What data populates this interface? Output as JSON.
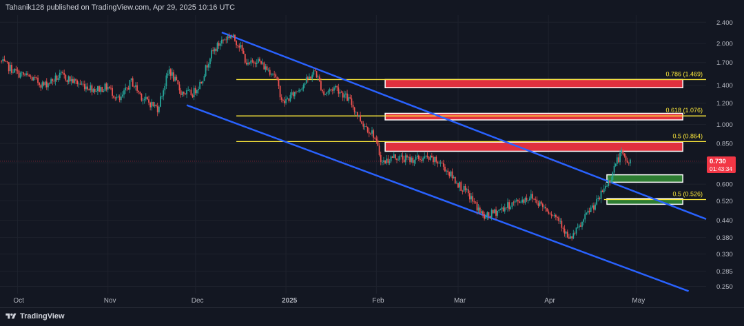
{
  "header": {
    "publisher_line": "Tahanik128 published on TradingView.com, Apr 29, 2025 10:16 UTC"
  },
  "footer": {
    "brand": "TradingView"
  },
  "colors": {
    "background": "#131722",
    "grid": "#1e222d",
    "up": "#26a69a",
    "down": "#ef5350",
    "channel": "#2962ff",
    "fib_line": "#ffeb3b",
    "resistance_zone": "#e0303e",
    "support_zone": "#2e7d32",
    "price_label": "#f23645"
  },
  "chart_data": {
    "type": "candlestick",
    "y_scale": "log",
    "ylim": [
      0.235,
      2.55
    ],
    "y_ticks": [
      "2.400",
      "2.000",
      "1.700",
      "1.400",
      "1.200",
      "1.000",
      "0.850",
      "0.720",
      "0.600",
      "0.520",
      "0.440",
      "0.380",
      "0.330",
      "0.285",
      "0.250"
    ],
    "x_ticks": [
      "Oct",
      "Nov",
      "Dec",
      "2025",
      "Feb",
      "Mar",
      "Apr",
      "May"
    ],
    "x_range": [
      "2024-09-25",
      "2025-05-25"
    ],
    "price_path": [
      [
        "2024-09-25",
        1.72
      ],
      [
        "2024-10-01",
        1.55
      ],
      [
        "2024-10-05",
        1.5
      ],
      [
        "2024-10-10",
        1.4
      ],
      [
        "2024-10-16",
        1.52
      ],
      [
        "2024-10-22",
        1.42
      ],
      [
        "2024-10-28",
        1.35
      ],
      [
        "2024-11-01",
        1.38
      ],
      [
        "2024-11-05",
        1.22
      ],
      [
        "2024-11-09",
        1.45
      ],
      [
        "2024-11-13",
        1.25
      ],
      [
        "2024-11-18",
        1.15
      ],
      [
        "2024-11-22",
        1.6
      ],
      [
        "2024-11-26",
        1.32
      ],
      [
        "2024-11-30",
        1.3
      ],
      [
        "2024-12-03",
        1.45
      ],
      [
        "2024-12-06",
        1.8
      ],
      [
        "2024-12-10",
        2.05
      ],
      [
        "2024-12-13",
        2.15
      ],
      [
        "2024-12-16",
        1.98
      ],
      [
        "2024-12-19",
        1.65
      ],
      [
        "2024-12-22",
        1.75
      ],
      [
        "2024-12-25",
        1.62
      ],
      [
        "2024-12-28",
        1.55
      ],
      [
        "2024-12-31",
        1.2
      ],
      [
        "2025-01-03",
        1.28
      ],
      [
        "2025-01-08",
        1.45
      ],
      [
        "2025-01-11",
        1.58
      ],
      [
        "2025-01-14",
        1.3
      ],
      [
        "2025-01-18",
        1.38
      ],
      [
        "2025-01-23",
        1.22
      ],
      [
        "2025-01-27",
        1.02
      ],
      [
        "2025-01-31",
        0.92
      ],
      [
        "2025-02-03",
        0.72
      ],
      [
        "2025-02-07",
        0.76
      ],
      [
        "2025-02-12",
        0.74
      ],
      [
        "2025-02-18",
        0.75
      ],
      [
        "2025-02-23",
        0.72
      ],
      [
        "2025-02-28",
        0.62
      ],
      [
        "2025-03-05",
        0.54
      ],
      [
        "2025-03-10",
        0.45
      ],
      [
        "2025-03-15",
        0.48
      ],
      [
        "2025-03-20",
        0.51
      ],
      [
        "2025-03-26",
        0.54
      ],
      [
        "2025-04-01",
        0.48
      ],
      [
        "2025-04-05",
        0.44
      ],
      [
        "2025-04-08",
        0.37
      ],
      [
        "2025-04-12",
        0.42
      ],
      [
        "2025-04-15",
        0.48
      ],
      [
        "2025-04-18",
        0.52
      ],
      [
        "2025-04-20",
        0.58
      ],
      [
        "2025-04-22",
        0.62
      ],
      [
        "2025-04-24",
        0.72
      ],
      [
        "2025-04-26",
        0.78
      ],
      [
        "2025-04-28",
        0.72
      ],
      [
        "2025-04-29",
        0.73
      ]
    ],
    "channel_lines": [
      {
        "from": [
          "2024-12-10",
          2.2
        ],
        "to": [
          "2025-05-25",
          0.445
        ]
      },
      {
        "from": [
          "2024-11-28",
          1.18
        ],
        "to": [
          "2025-05-19",
          0.24
        ]
      }
    ],
    "fib_levels": [
      {
        "label": "0.786 (1.469)",
        "value": 1.469,
        "from": "2024-12-15",
        "to": "2025-05-25"
      },
      {
        "label": "0.618 (1.076)",
        "value": 1.076,
        "from": "2024-12-15",
        "to": "2025-05-25"
      },
      {
        "label": "0.5 (0.864)",
        "value": 0.864,
        "from": "2024-12-15",
        "to": "2025-05-25"
      },
      {
        "label": "0.5 (0.526)",
        "value": 0.526,
        "from": "2025-04-20",
        "to": "2025-05-25"
      }
    ],
    "zones": [
      {
        "kind": "resistance",
        "x0": "2025-02-04",
        "x1": "2025-05-17",
        "y0": 1.37,
        "y1": 1.47
      },
      {
        "kind": "resistance",
        "x0": "2025-02-04",
        "x1": "2025-05-17",
        "y0": 1.04,
        "y1": 1.1
      },
      {
        "kind": "resistance",
        "x0": "2025-02-04",
        "x1": "2025-05-17",
        "y0": 0.795,
        "y1": 0.86
      },
      {
        "kind": "support",
        "x0": "2025-04-21",
        "x1": "2025-05-17",
        "y0": 0.61,
        "y1": 0.65
      },
      {
        "kind": "support",
        "x0": "2025-04-21",
        "x1": "2025-05-17",
        "y0": 0.505,
        "y1": 0.53
      }
    ],
    "last_price": {
      "value": 0.73,
      "price_text": "0.730",
      "countdown": "01:43:34"
    }
  }
}
